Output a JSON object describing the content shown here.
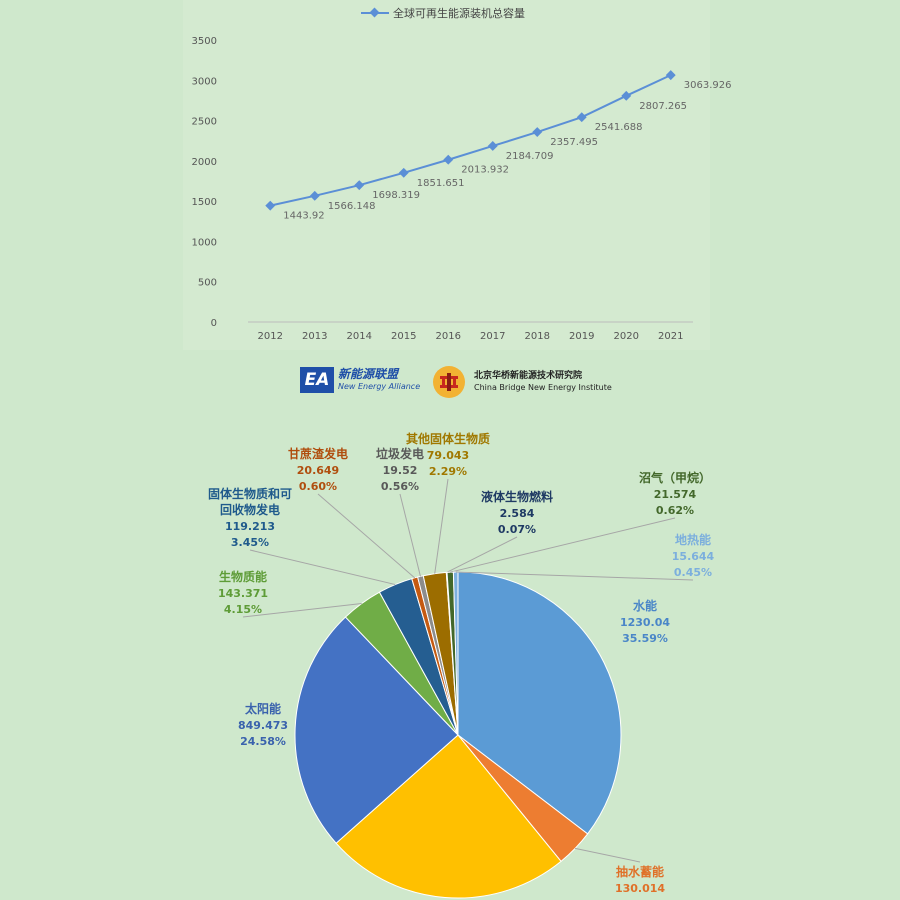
{
  "chart_data": [
    {
      "type": "line",
      "title": "",
      "legend": {
        "position": "top",
        "label": "全球可再生能源装机总容量"
      },
      "xlabel": "",
      "ylabel": "",
      "x": [
        "2012",
        "2013",
        "2014",
        "2015",
        "2016",
        "2017",
        "2018",
        "2019",
        "2020",
        "2021"
      ],
      "ylim": [
        0,
        3500
      ],
      "yticks": [
        "0",
        "500",
        "1000",
        "1500",
        "2000",
        "2500",
        "3000",
        "3500"
      ],
      "grid": false,
      "series": [
        {
          "name": "全球可再生能源装机总容量",
          "color": "#5b8fd6",
          "values": [
            1443.92,
            1566.148,
            1698.319,
            1851.651,
            2013.932,
            2184.709,
            2357.495,
            2541.688,
            2807.265,
            3063.926
          ],
          "labels": [
            "1443.92",
            "1566.148",
            "1698.319",
            "1851.651",
            "2013.932",
            "2184.709",
            "2357.495",
            "2541.688",
            "2807.265",
            "3063.926"
          ]
        }
      ]
    },
    {
      "type": "pie",
      "title": "",
      "slices": [
        {
          "name": "水能",
          "value": 1230.04,
          "value_label": "1230.04",
          "percent": "35.59%",
          "color": "#5b9bd5",
          "label_color": "#4a86c8"
        },
        {
          "name": "抽水蓄能",
          "value": 130.014,
          "value_label": "130.014",
          "percent": "",
          "color": "#ed7d31",
          "label_color": "#e07028"
        },
        {
          "name": "",
          "value": 846.0,
          "value_label": "",
          "percent": "",
          "color": "#ffc000",
          "label_color": "#b08a00"
        },
        {
          "name": "太阳能",
          "value": 849.473,
          "value_label": "849.473",
          "percent": "24.58%",
          "color": "#4472c4",
          "label_color": "#3a62ad"
        },
        {
          "name": "生物质能",
          "value": 143.371,
          "value_label": "143.371",
          "percent": "4.15%",
          "color": "#70ad47",
          "label_color": "#5e9c37"
        },
        {
          "name": "固体生物质和可回收物发电",
          "value": 119.213,
          "value_label": "119.213",
          "percent": "3.45%",
          "color": "#255e91",
          "label_color": "#1f5a8c"
        },
        {
          "name": "甘蔗渣发电",
          "value": 20.649,
          "value_label": "20.649",
          "percent": "0.60%",
          "color": "#c55a11",
          "label_color": "#b04e0e"
        },
        {
          "name": "垃圾发电",
          "value": 19.52,
          "value_label": "19.52",
          "percent": "0.56%",
          "color": "#8c8c8c",
          "label_color": "#595959"
        },
        {
          "name": "其他固体生物质",
          "value": 79.043,
          "value_label": "79.043",
          "percent": "2.29%",
          "color": "#9c6d00",
          "label_color": "#a07800"
        },
        {
          "name": "液体生物燃料",
          "value": 2.584,
          "value_label": "2.584",
          "percent": "0.07%",
          "color": "#1f3a64",
          "label_color": "#1f3a64"
        },
        {
          "name": "沼气（甲烷）",
          "value": 21.574,
          "value_label": "21.574",
          "percent": "0.62%",
          "color": "#43682b",
          "label_color": "#43682b"
        },
        {
          "name": "地热能",
          "value": 15.644,
          "value_label": "15.644",
          "percent": "0.45%",
          "color": "#7cafdd",
          "label_color": "#7cafdd"
        }
      ]
    }
  ],
  "logos": {
    "ea": {
      "mark": "EA",
      "cn": "新能源联盟",
      "en": "New Energy Alliance"
    },
    "cb": {
      "cn": "北京华桥新能源技术研究院",
      "en": "China Bridge New Energy Institute"
    }
  }
}
